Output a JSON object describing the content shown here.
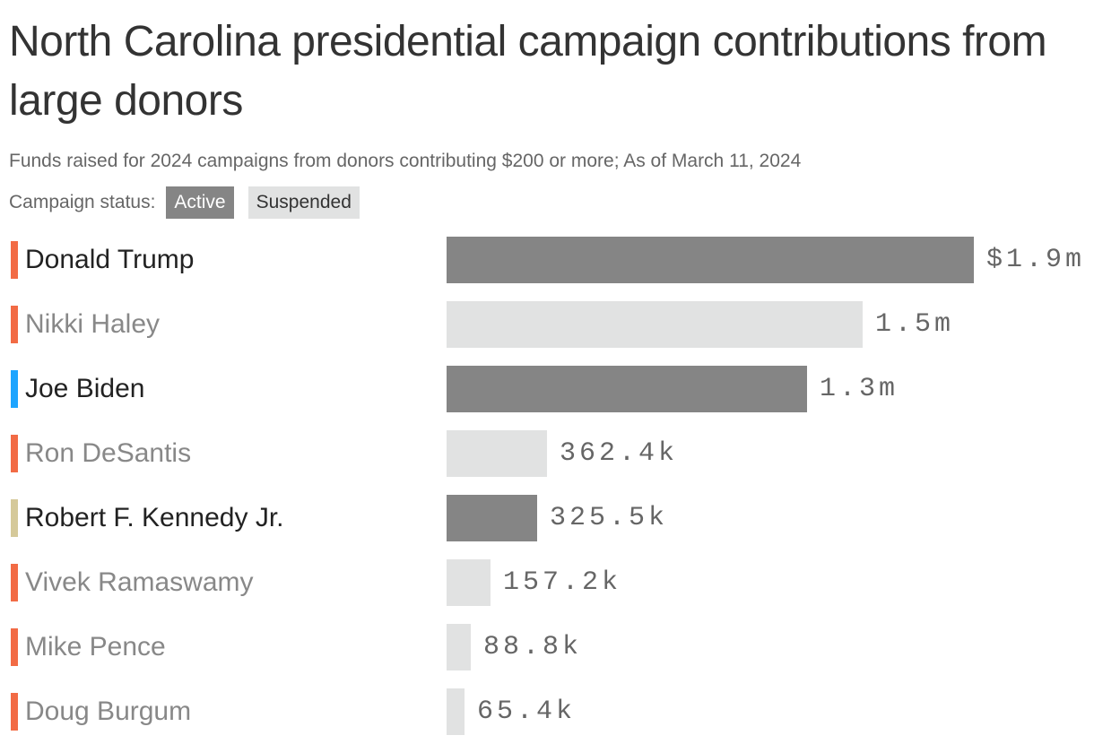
{
  "title": "North Carolina presidential campaign contributions from large donors",
  "subtitle": "Funds raised for 2024 campaigns from donors contributing $200 or more; As of March 11, 2024",
  "legend": {
    "label": "Campaign status:",
    "active": "Active",
    "suspended": "Suspended"
  },
  "colors": {
    "active_bar": "#858585",
    "suspended_bar": "#e1e2e2",
    "republican": "#f26b45",
    "democrat": "#1ea5ff",
    "independent": "#d5c99a",
    "active_text": "#222222",
    "suspended_text": "#888888",
    "value_text": "#666666"
  },
  "chart_data": {
    "type": "bar",
    "orientation": "horizontal",
    "categories": [
      "Donald Trump",
      "Nikki Haley",
      "Joe Biden",
      "Ron DeSantis",
      "Robert F. Kennedy Jr.",
      "Vivek Ramaswamy",
      "Mike Pence",
      "Doug Burgum"
    ],
    "values": [
      1900000,
      1500000,
      1300000,
      362400,
      325500,
      157200,
      88800,
      65400
    ],
    "labels": [
      "$1.9m",
      "1.5m",
      "1.3m",
      "362.4k",
      "325.5k",
      "157.2k",
      "88.8k",
      "65.4k"
    ],
    "status": [
      "Active",
      "Suspended",
      "Active",
      "Suspended",
      "Active",
      "Suspended",
      "Suspended",
      "Suspended"
    ],
    "party_color": [
      "republican",
      "republican",
      "democrat",
      "republican",
      "independent",
      "republican",
      "republican",
      "republican"
    ],
    "xlim": [
      0,
      1900000
    ]
  }
}
